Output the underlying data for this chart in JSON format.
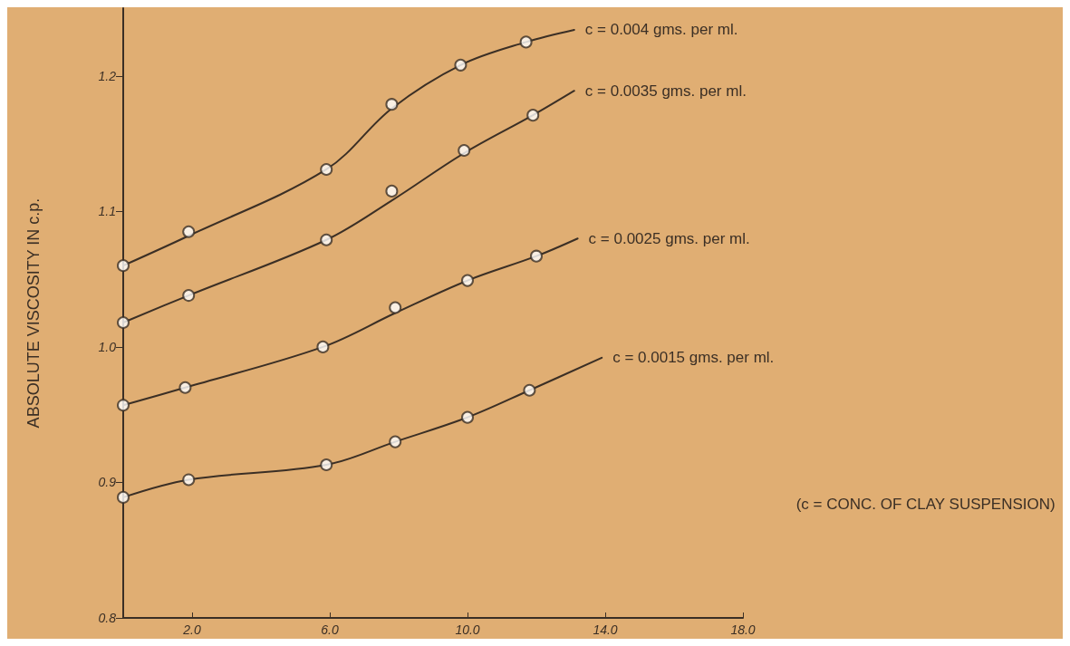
{
  "chart_data": {
    "type": "line",
    "ylabel": "ABSOLUTE VISCOSITY IN c.p.",
    "annotations": [
      "(c = CONC. OF CLAY SUSPENSION)"
    ],
    "xlim": [
      0,
      18
    ],
    "xticks": [
      {
        "value": 2,
        "label": "2.0"
      },
      {
        "value": 6,
        "label": "6.0"
      },
      {
        "value": 10,
        "label": "10.0"
      },
      {
        "value": 14,
        "label": "14.0"
      },
      {
        "value": 18,
        "label": "18.0"
      }
    ],
    "ylim": [
      0.8,
      1.25
    ],
    "yticks": [
      {
        "value": 0.8,
        "label": "0.8"
      },
      {
        "value": 0.9,
        "label": "0.9"
      },
      {
        "value": 1.0,
        "label": "1.0"
      },
      {
        "value": 1.1,
        "label": "1.1"
      },
      {
        "value": 1.2,
        "label": "1.2"
      }
    ],
    "grid": false,
    "legend": false,
    "series": [
      {
        "type": "scatter",
        "marker": "circle",
        "color": "#3b2f25",
        "x": [
          0,
          1.9,
          5.9,
          7.8,
          9.8,
          11.7
        ],
        "values": [
          1.06,
          1.085,
          1.131,
          1.179,
          1.208,
          1.225
        ]
      },
      {
        "marker": "none",
        "name": "c = 0.004 gms. per ml.",
        "color": "#3b2f25",
        "x": [
          0,
          1.9,
          5.9,
          7.8,
          9.8,
          11.7,
          13.1
        ],
        "values": [
          1.06,
          1.082,
          1.131,
          1.176,
          1.208,
          1.225,
          1.234
        ]
      },
      {
        "type": "scatter",
        "marker": "circle",
        "color": "#3b2f25",
        "x": [
          0,
          1.9,
          5.9,
          7.8,
          9.9,
          11.9
        ],
        "values": [
          1.018,
          1.038,
          1.079,
          1.115,
          1.145,
          1.171
        ]
      },
      {
        "marker": "none",
        "name": "c = 0.0035 gms. per ml.",
        "color": "#3b2f25",
        "x": [
          0,
          1.9,
          5.9,
          7.8,
          9.9,
          11.9,
          13.1
        ],
        "values": [
          1.018,
          1.038,
          1.079,
          1.108,
          1.143,
          1.171,
          1.189
        ]
      },
      {
        "type": "scatter",
        "marker": "circle",
        "color": "#3b2f25",
        "x": [
          0,
          1.8,
          5.8,
          7.9,
          10.0,
          12.0
        ],
        "values": [
          0.957,
          0.97,
          1.0,
          1.029,
          1.049,
          1.067
        ]
      },
      {
        "marker": "none",
        "name": "c = 0.0025 gms. per ml.",
        "color": "#3b2f25",
        "x": [
          0,
          1.8,
          5.8,
          7.9,
          10.0,
          12.0,
          13.2
        ],
        "values": [
          0.957,
          0.97,
          1.0,
          1.025,
          1.049,
          1.067,
          1.08
        ]
      },
      {
        "type": "scatter",
        "marker": "circle",
        "color": "#3b2f25",
        "x": [
          0,
          1.9,
          5.9,
          7.9,
          10.0,
          11.8
        ],
        "values": [
          0.889,
          0.902,
          0.913,
          0.93,
          0.948,
          0.968
        ]
      },
      {
        "marker": "none",
        "name": "c = 0.0015 gms. per ml.",
        "color": "#3b2f25",
        "x": [
          0,
          1.9,
          5.9,
          7.9,
          10.0,
          11.8,
          13.9
        ],
        "values": [
          0.889,
          0.902,
          0.913,
          0.93,
          0.948,
          0.968,
          0.992
        ]
      }
    ]
  }
}
